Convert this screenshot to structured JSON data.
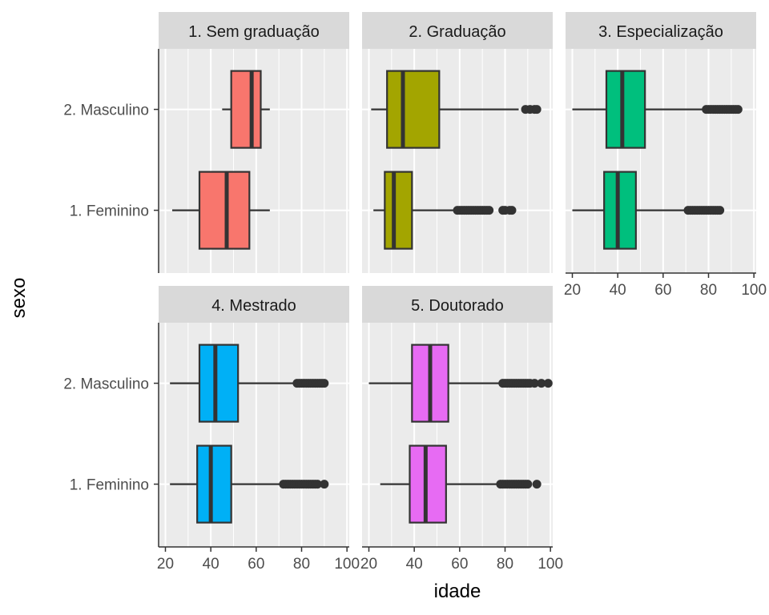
{
  "chart_data": {
    "type": "boxplot",
    "orientation": "horizontal",
    "xlabel": "idade",
    "ylabel": "sexo",
    "xlim": [
      17,
      101
    ],
    "x_ticks": [
      20,
      40,
      60,
      80,
      100
    ],
    "categories": [
      "1. Feminino",
      "2. Masculino"
    ],
    "grid": true,
    "legend": "none",
    "panels": [
      {
        "title": "1. Sem graduação",
        "color": "#f8766d",
        "boxes": [
          {
            "category": "2. Masculino",
            "whisker_low": 45,
            "q1": 49,
            "median": 58,
            "q3": 62,
            "whisker_high": 66,
            "outliers": []
          },
          {
            "category": "1. Feminino",
            "whisker_low": 23,
            "q1": 35,
            "median": 47,
            "q3": 57,
            "whisker_high": 66,
            "outliers": []
          }
        ]
      },
      {
        "title": "2. Graduação",
        "color": "#a3a500",
        "boxes": [
          {
            "category": "2. Masculino",
            "whisker_low": 21,
            "q1": 28,
            "median": 35,
            "q3": 51,
            "whisker_high": 86,
            "outliers": [
              89,
              91,
              93,
              94
            ]
          },
          {
            "category": "1. Feminino",
            "whisker_low": 22,
            "q1": 27,
            "median": 31,
            "q3": 39,
            "whisker_high": 58,
            "outliers": [
              59,
              60,
              61,
              62,
              63,
              64,
              65,
              66,
              67,
              68,
              69,
              70,
              71,
              72,
              73,
              79,
              80,
              82,
              83
            ]
          }
        ]
      },
      {
        "title": "3. Especialização",
        "color": "#00bf7d",
        "boxes": [
          {
            "category": "2. Masculino",
            "whisker_low": 20,
            "q1": 35,
            "median": 42,
            "q3": 52,
            "whisker_high": 78,
            "outliers": [
              79,
              80,
              81,
              82,
              83,
              84,
              85,
              86,
              87,
              88,
              89,
              90,
              91,
              92,
              93
            ]
          },
          {
            "category": "1. Feminino",
            "whisker_low": 20,
            "q1": 34,
            "median": 40,
            "q3": 48,
            "whisker_high": 70,
            "outliers": [
              71,
              72,
              73,
              74,
              75,
              76,
              77,
              78,
              79,
              80,
              81,
              82,
              83,
              84,
              85
            ]
          }
        ]
      },
      {
        "title": "4. Mestrado",
        "color": "#00b0f6",
        "boxes": [
          {
            "category": "2. Masculino",
            "whisker_low": 22,
            "q1": 35,
            "median": 42,
            "q3": 52,
            "whisker_high": 77,
            "outliers": [
              78,
              79,
              80,
              81,
              82,
              83,
              84,
              85,
              86,
              87,
              88,
              89,
              90
            ]
          },
          {
            "category": "1. Feminino",
            "whisker_low": 22,
            "q1": 34,
            "median": 40,
            "q3": 49,
            "whisker_high": 71,
            "outliers": [
              72,
              73,
              74,
              75,
              76,
              77,
              78,
              79,
              80,
              81,
              82,
              83,
              84,
              85,
              86,
              87,
              90
            ]
          }
        ]
      },
      {
        "title": "5. Doutorado",
        "color": "#e76bf3",
        "boxes": [
          {
            "category": "2. Masculino",
            "whisker_low": 20,
            "q1": 39,
            "median": 47,
            "q3": 55,
            "whisker_high": 78,
            "outliers": [
              79,
              80,
              81,
              82,
              83,
              84,
              85,
              86,
              87,
              88,
              89,
              90,
              91,
              93,
              96,
              99
            ]
          },
          {
            "category": "1. Feminino",
            "whisker_low": 25,
            "q1": 38,
            "median": 45,
            "q3": 54,
            "whisker_high": 77,
            "outliers": [
              78,
              79,
              80,
              81,
              82,
              83,
              84,
              85,
              86,
              87,
              88,
              89,
              90,
              94
            ]
          }
        ]
      }
    ]
  }
}
